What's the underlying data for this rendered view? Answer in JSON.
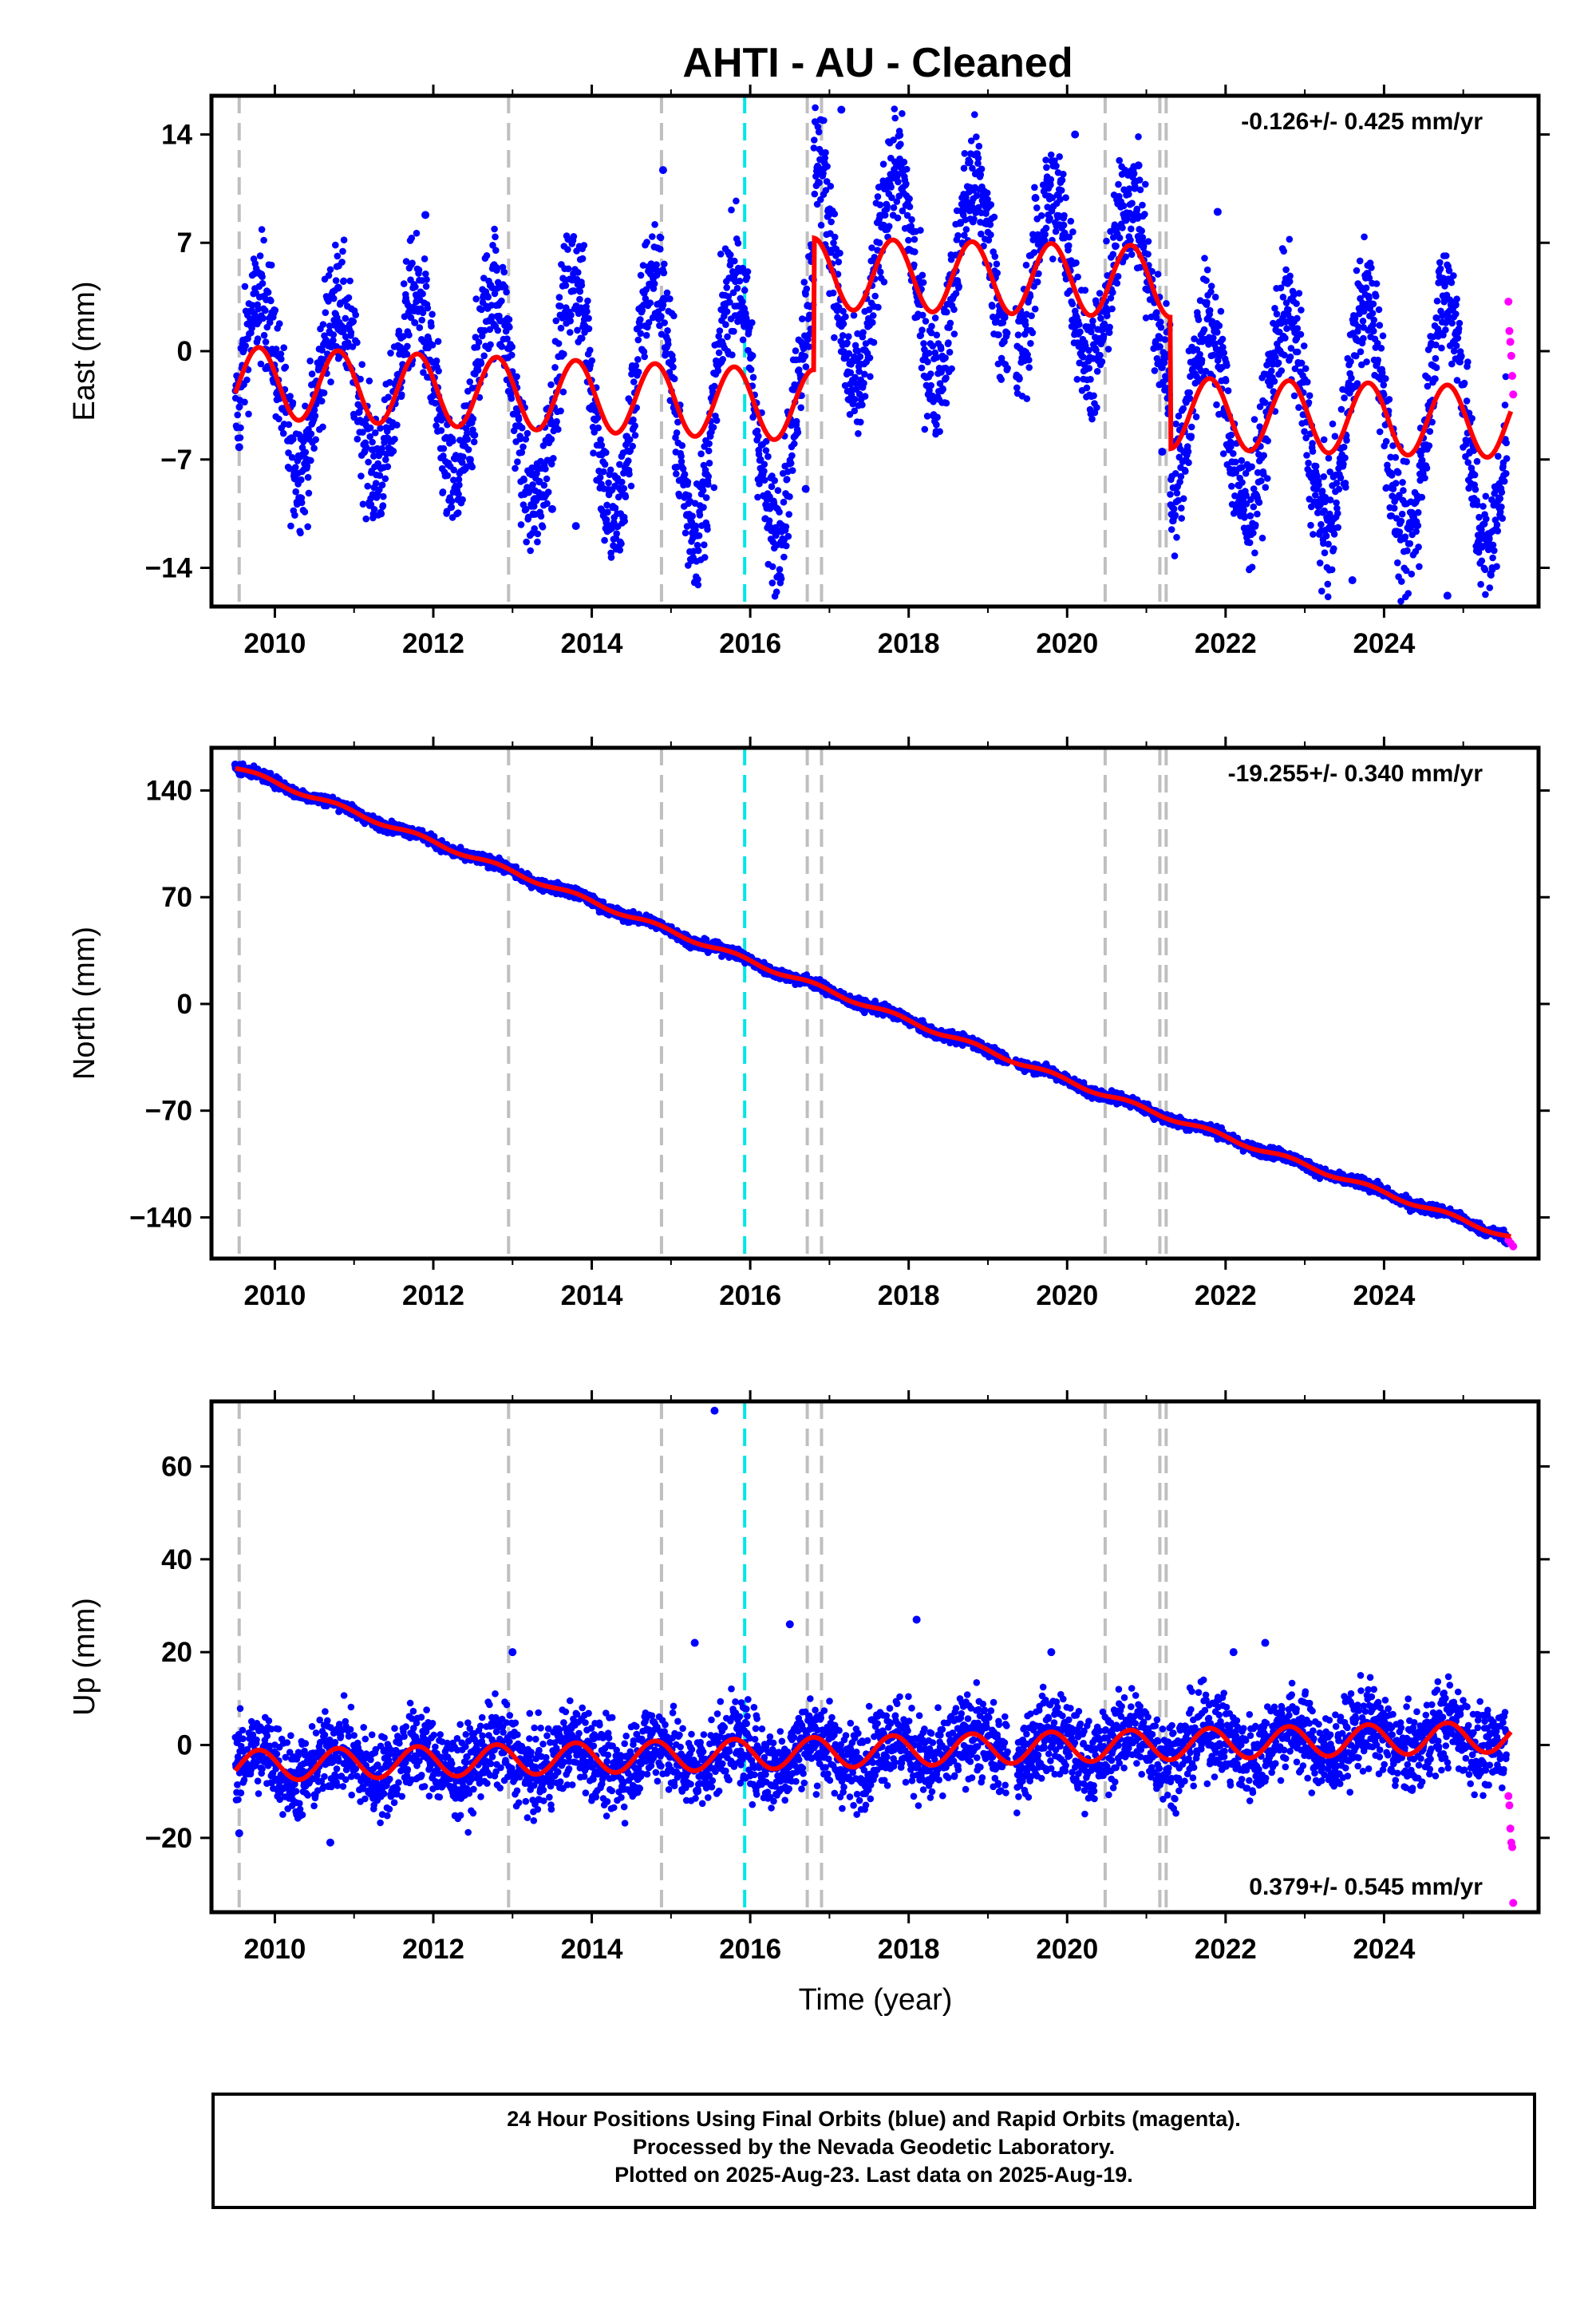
{
  "title": "AHTI  - AU - Cleaned",
  "xlabel": "Time (year)",
  "footer": [
    "24 Hour Positions Using Final Orbits (blue) and Rapid Orbits (magenta).",
    "Processed by the Nevada Geodetic Laboratory.",
    "Plotted on 2025-Aug-23. Last data on 2025-Aug-19."
  ],
  "colors": {
    "final_orbits": "#0000ff",
    "rapid_orbits": "#ff00ff",
    "model_fit": "#ff0000",
    "event_line": "#bfbfbf",
    "highlight_event_line": "#00e5e5"
  },
  "chart_data": [
    {
      "type": "scatter",
      "component": "East",
      "ylabel": "East (mm)",
      "rate_label": "-0.126+/- 0.425 mm/yr",
      "rate_position": "top-right",
      "xlim": [
        2009.2,
        2025.95
      ],
      "ylim": [
        -16.5,
        16.5
      ],
      "xticks": [
        2010,
        2012,
        2014,
        2016,
        2018,
        2020,
        2022,
        2024
      ],
      "yticks": [
        14,
        7,
        0,
        -7,
        -14
      ],
      "ytick_labels": [
        "14",
        "7",
        "0",
        "−7",
        "−14"
      ],
      "trend_points": [
        [
          2009.5,
          -2.0
        ],
        [
          2016.7,
          -3.5
        ],
        [
          2016.8,
          5.0
        ],
        [
          2021.2,
          4.5
        ],
        [
          2021.3,
          -4.0
        ],
        [
          2025.6,
          -4.6
        ]
      ],
      "seasonal_amplitude": 2.3,
      "noise_mm": 2.0,
      "final_orbit_points": [
        [
          2009.55,
          -6.2
        ],
        [
          2010.8,
          4.1
        ],
        [
          2011.9,
          8.8
        ],
        [
          2013.5,
          -10.2
        ],
        [
          2013.8,
          -11.3
        ],
        [
          2014.9,
          11.7
        ],
        [
          2015.9,
          2.0
        ],
        [
          2016.7,
          -8.9
        ],
        [
          2017.15,
          15.6
        ],
        [
          2017.9,
          12.0
        ],
        [
          2019.6,
          9.9
        ],
        [
          2020.1,
          14.0
        ],
        [
          2020.5,
          2.6
        ],
        [
          2020.9,
          12.0
        ],
        [
          2021.2,
          -6.5
        ],
        [
          2021.9,
          9.0
        ],
        [
          2023.6,
          -14.8
        ],
        [
          2024.8,
          -15.8
        ],
        [
          2024.9,
          3.0
        ]
      ],
      "rapid_orbit_values": [
        3.2,
        1.3,
        0.6,
        -0.3,
        -1.6,
        -2.8
      ],
      "rapid_orbit_date_range": [
        2025.57,
        2025.63
      ]
    },
    {
      "type": "scatter",
      "component": "North",
      "ylabel": "North (mm)",
      "rate_label": "-19.255+/- 0.340 mm/yr",
      "rate_position": "top-right",
      "xlim": [
        2009.2,
        2025.95
      ],
      "ylim": [
        -167,
        168
      ],
      "xticks": [
        2010,
        2012,
        2014,
        2016,
        2018,
        2020,
        2022,
        2024
      ],
      "yticks": [
        140,
        70,
        0,
        -70,
        -140
      ],
      "ytick_labels": [
        "140",
        "70",
        "0",
        "−70",
        "−140"
      ],
      "trend_points": [
        [
          2009.5,
          155
        ],
        [
          2016.0,
          28
        ],
        [
          2020.5,
          -60
        ],
        [
          2025.6,
          -153
        ]
      ],
      "seasonal_amplitude": 1.5,
      "noise_mm": 1.8,
      "final_orbit_points": [
        [
          2009.5,
          157
        ],
        [
          2025.55,
          -157
        ]
      ],
      "rapid_orbit_values": [
        -155,
        -157,
        -159
      ],
      "rapid_orbit_date_range": [
        2025.57,
        2025.63
      ]
    },
    {
      "type": "scatter",
      "component": "Up",
      "ylabel": "Up (mm)",
      "rate_label": "0.379+/- 0.545 mm/yr",
      "rate_position": "bottom-right",
      "xlim": [
        2009.2,
        2025.95
      ],
      "ylim": [
        -36,
        74
      ],
      "xticks": [
        2010,
        2012,
        2014,
        2016,
        2018,
        2020,
        2022,
        2024
      ],
      "yticks": [
        60,
        40,
        20,
        0,
        -20
      ],
      "ytick_labels": [
        "60",
        "40",
        "20",
        "0",
        "−20"
      ],
      "trend_points": [
        [
          2009.5,
          -4.5
        ],
        [
          2025.6,
          1.8
        ]
      ],
      "seasonal_amplitude": 3.3,
      "noise_mm": 4.5,
      "final_orbit_points": [
        [
          2015.55,
          72
        ],
        [
          2016.5,
          26
        ],
        [
          2018.1,
          27
        ],
        [
          2013.0,
          20
        ],
        [
          2015.3,
          22
        ],
        [
          2022.5,
          22
        ],
        [
          2022.1,
          20
        ],
        [
          2019.8,
          20
        ],
        [
          2010.7,
          -21
        ],
        [
          2009.55,
          -19
        ]
      ],
      "rapid_orbit_values": [
        -11,
        -13,
        -18,
        -21,
        -22,
        -34
      ],
      "rapid_orbit_date_range": [
        2025.57,
        2025.63
      ]
    }
  ],
  "event_lines": {
    "gray": [
      2009.55,
      2012.95,
      2014.88,
      2016.72,
      2016.9,
      2020.48,
      2021.17,
      2021.25
    ],
    "cyan": [
      2015.93
    ]
  }
}
